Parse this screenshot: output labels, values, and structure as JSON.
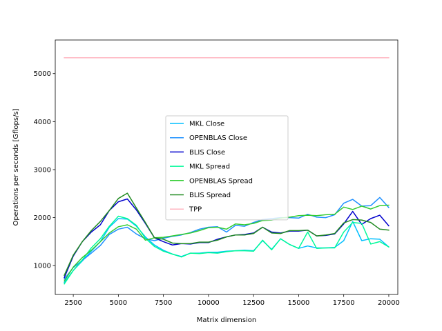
{
  "chart_data": {
    "type": "line",
    "xlabel": "Matrix dimension",
    "ylabel": "Operations per seconds [Gflops/s]",
    "xlim": [
      1500,
      20500
    ],
    "ylim": [
      400,
      5700
    ],
    "xticks": [
      2500,
      5000,
      7500,
      10000,
      12500,
      15000,
      17500,
      20000
    ],
    "yticks": [
      1000,
      2000,
      3000,
      4000,
      5000
    ],
    "x": [
      2000,
      2500,
      3000,
      3500,
      4000,
      4500,
      5000,
      5500,
      6000,
      6500,
      7000,
      7500,
      8000,
      8500,
      9000,
      9500,
      10000,
      10500,
      11000,
      11500,
      12000,
      12500,
      13000,
      13500,
      14000,
      14500,
      15000,
      15500,
      16000,
      16500,
      17000,
      17500,
      18000,
      18500,
      19000,
      19500,
      20000
    ],
    "legend_position": "center",
    "series": [
      {
        "name": "MKL Close",
        "color": "#00bfff",
        "values": [
          650,
          900,
          1100,
          1300,
          1500,
          1800,
          1980,
          1970,
          1820,
          1600,
          1430,
          1320,
          1240,
          1190,
          1260,
          1260,
          1280,
          1280,
          1300,
          1310,
          1320,
          1310,
          1520,
          1340,
          1560,
          1440,
          1360,
          1410,
          1370,
          1370,
          1380,
          1520,
          1920,
          1520,
          1560,
          1550,
          1390
        ]
      },
      {
        "name": "OPENBLAS Close",
        "color": "#1e90ff",
        "values": [
          720,
          960,
          1110,
          1260,
          1420,
          1650,
          1760,
          1800,
          1660,
          1560,
          1520,
          1570,
          1610,
          1640,
          1690,
          1760,
          1800,
          1810,
          1700,
          1840,
          1820,
          1900,
          1960,
          1980,
          2000,
          2000,
          1990,
          2070,
          2010,
          2000,
          2060,
          2300,
          2380,
          2240,
          2250,
          2420,
          2210
        ]
      },
      {
        "name": "BLIS Close",
        "color": "#0000cd",
        "values": [
          750,
          1200,
          1500,
          1700,
          1850,
          2150,
          2330,
          2390,
          2160,
          1880,
          1580,
          1500,
          1430,
          1460,
          1450,
          1480,
          1480,
          1550,
          1600,
          1640,
          1650,
          1680,
          1800,
          1700,
          1680,
          1720,
          1720,
          1740,
          1620,
          1630,
          1660,
          1870,
          2130,
          1860,
          1980,
          2050,
          1830
        ]
      },
      {
        "name": "MKL Spread",
        "color": "#00fa9a",
        "values": [
          620,
          900,
          1120,
          1370,
          1560,
          1820,
          2030,
          1980,
          1840,
          1570,
          1400,
          1300,
          1240,
          1180,
          1260,
          1250,
          1270,
          1260,
          1290,
          1310,
          1310,
          1300,
          1530,
          1330,
          1560,
          1440,
          1360,
          1700,
          1360,
          1370,
          1370,
          1700,
          1900,
          1880,
          1450,
          1500,
          1390
        ]
      },
      {
        "name": "OPENBLAS Spread",
        "color": "#32cd32",
        "values": [
          680,
          970,
          1170,
          1320,
          1500,
          1680,
          1810,
          1850,
          1760,
          1530,
          1580,
          1590,
          1620,
          1650,
          1680,
          1730,
          1790,
          1800,
          1760,
          1870,
          1850,
          1880,
          1940,
          1950,
          1990,
          2010,
          2040,
          2050,
          2040,
          2060,
          2070,
          2220,
          2170,
          2240,
          2180,
          2250,
          2260
        ]
      },
      {
        "name": "BLIS Spread",
        "color": "#228b22",
        "values": [
          800,
          1220,
          1500,
          1730,
          1920,
          2150,
          2400,
          2510,
          2200,
          1900,
          1580,
          1550,
          1470,
          1460,
          1460,
          1490,
          1490,
          1530,
          1600,
          1640,
          1640,
          1670,
          1800,
          1680,
          1670,
          1730,
          1730,
          1740,
          1620,
          1640,
          1670,
          1890,
          1960,
          1950,
          1900,
          1760,
          1740
        ]
      },
      {
        "name": "TPP",
        "color": "#ffb6c1",
        "values": [
          5330,
          5330,
          5330,
          5330,
          5330,
          5330,
          5330,
          5330,
          5330,
          5330,
          5330,
          5330,
          5330,
          5330,
          5330,
          5330,
          5330,
          5330,
          5330,
          5330,
          5330,
          5330,
          5330,
          5330,
          5330,
          5330,
          5330,
          5330,
          5330,
          5330,
          5330,
          5330,
          5330,
          5330,
          5330,
          5330,
          5330
        ]
      }
    ]
  }
}
